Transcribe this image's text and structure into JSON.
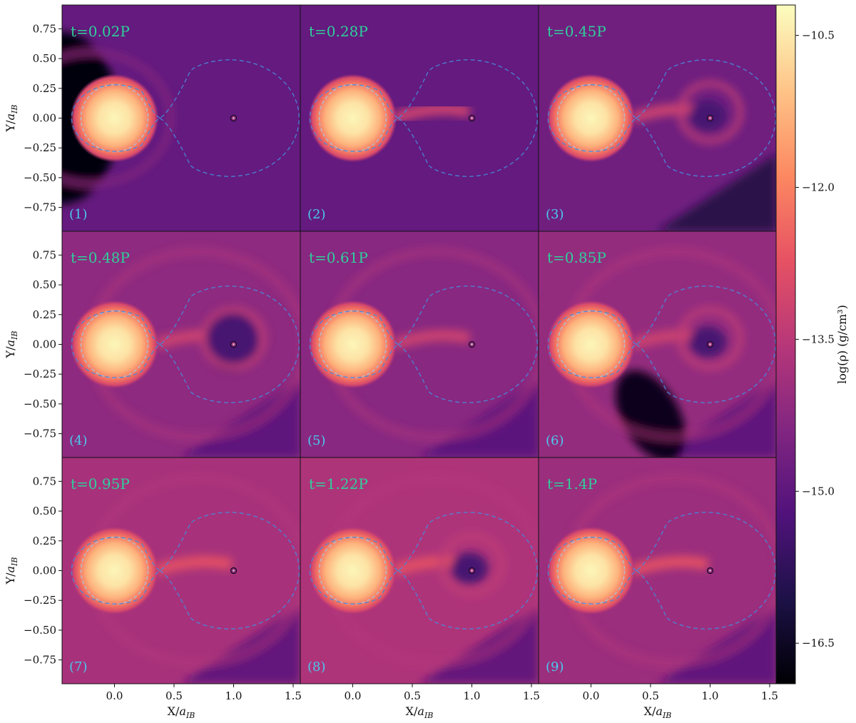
{
  "chart_data": {
    "type": "heatmap",
    "grid": {
      "rows": 3,
      "cols": 3
    },
    "x_axis": {
      "label": "X/",
      "label_sub": "a",
      "label_subsub": "IB",
      "range": [
        -0.44,
        1.56
      ],
      "ticks": [
        0.0,
        0.5,
        1.0,
        1.5
      ],
      "tick_labels": [
        "0.0",
        "0.5",
        "1.0",
        "1.5"
      ]
    },
    "y_axis": {
      "label": "Y/",
      "label_sub": "a",
      "label_subsub": "IB",
      "range": [
        -0.95,
        0.95
      ],
      "ticks": [
        0.75,
        0.5,
        0.25,
        0.0,
        -0.25,
        -0.5,
        -0.75
      ],
      "tick_labels": [
        "0.75",
        "0.50",
        "0.25",
        "0.00",
        "−0.25",
        "−0.50",
        "−0.75"
      ]
    },
    "colorbar": {
      "label": "log(ρ) (g/cm³)",
      "range": [
        -16.9,
        -10.2
      ],
      "ticks": [
        -10.5,
        -12.0,
        -13.5,
        -15.0,
        -16.5
      ],
      "tick_labels": [
        "−10.5",
        "−12.0",
        "−13.5",
        "−15.0",
        "−16.5"
      ],
      "colormap": [
        "#000004",
        "#1d1147",
        "#51127c",
        "#822681",
        "#b73779",
        "#e75263",
        "#fc8961",
        "#fec488",
        "#fcfdbf"
      ]
    },
    "panels": [
      {
        "index": "(1)",
        "time": "t=0.02P",
        "background_log_rho": -14.9
      },
      {
        "index": "(2)",
        "time": "t=0.28P",
        "background_log_rho": -14.9
      },
      {
        "index": "(3)",
        "time": "t=0.45P",
        "background_log_rho": -14.7
      },
      {
        "index": "(4)",
        "time": "t=0.48P",
        "background_log_rho": -14.2
      },
      {
        "index": "(5)",
        "time": "t=0.61P",
        "background_log_rho": -14.3
      },
      {
        "index": "(6)",
        "time": "t=0.85P",
        "background_log_rho": -14.1
      },
      {
        "index": "(7)",
        "time": "t=0.95P",
        "background_log_rho": -13.8
      },
      {
        "index": "(8)",
        "time": "t=1.22P",
        "background_log_rho": -13.7
      },
      {
        "index": "(9)",
        "time": "t=1.4P",
        "background_log_rho": -14.0
      }
    ],
    "star": {
      "x": 0.0,
      "y": 0.0,
      "peak_log_rho": -10.3
    },
    "companion": {
      "x": 1.0,
      "y": 0.0
    },
    "roche_lobe": {
      "L1_x": 0.38,
      "primary_lobe_radius": 0.37,
      "secondary_lobe_extent": [
        0.38,
        1.55
      ]
    },
    "colors": {
      "time_label": "#2fcf9a",
      "index_label": "#4cc8ee",
      "roche_dashes": "#4a86d9",
      "star_ring_dashes": "#b9b9c6"
    }
  }
}
